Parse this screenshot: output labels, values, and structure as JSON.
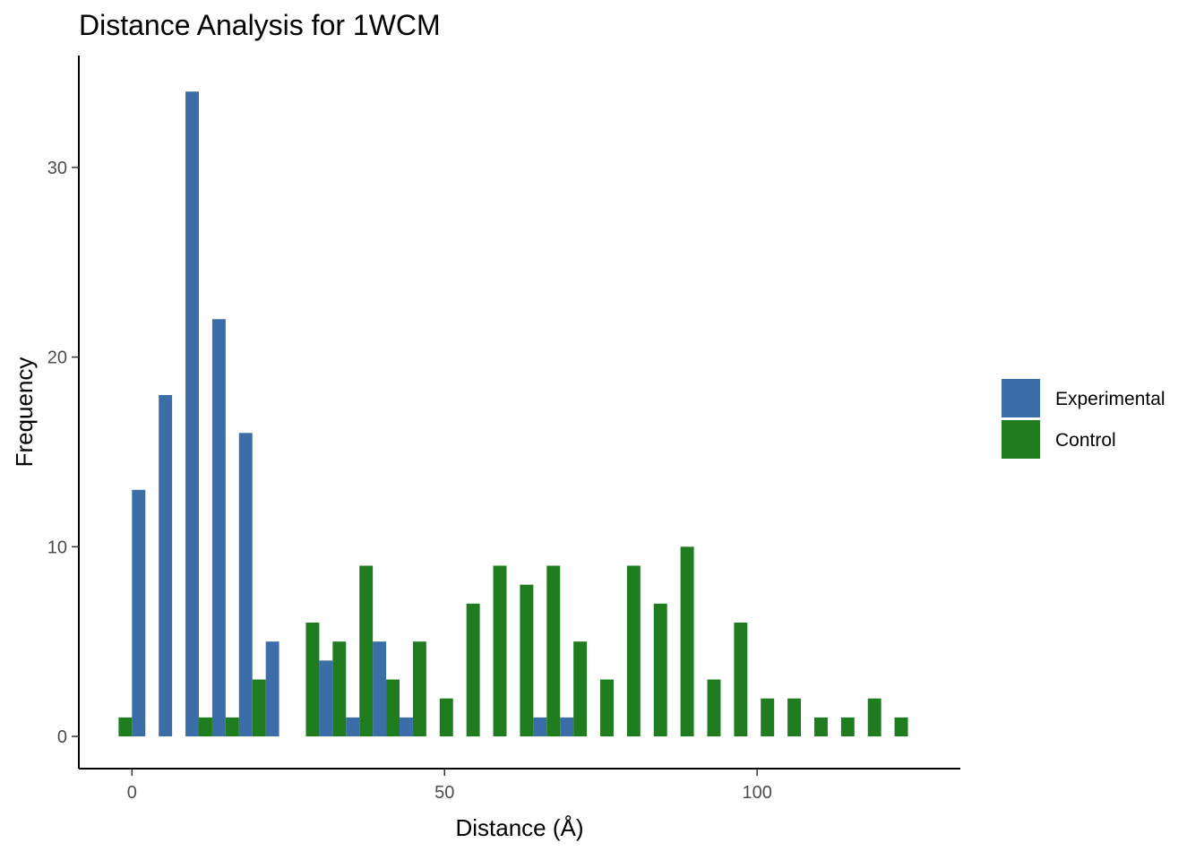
{
  "chart_data": {
    "type": "bar",
    "title": "Distance Analysis for 1WCM",
    "xlabel": "Distance (Å)",
    "ylabel": "Frequency",
    "xlim": [
      -8.5,
      132.5
    ],
    "ylim": [
      -1.7,
      35.9
    ],
    "x_ticks": [
      0,
      50,
      100
    ],
    "y_ticks": [
      0,
      10,
      20,
      30
    ],
    "bin_width": 4.28,
    "grid": false,
    "legend_position": "right",
    "x": [
      0,
      4.28,
      8.56,
      12.84,
      17.12,
      21.4,
      25.68,
      29.96,
      34.24,
      38.52,
      42.8,
      47.08,
      51.36,
      55.64,
      59.92,
      64.2,
      68.48,
      72.76,
      77.04,
      81.32,
      85.6,
      89.88,
      94.16,
      98.44,
      102.72,
      107,
      111.28,
      115.56,
      119.84,
      124.12
    ],
    "series": [
      {
        "name": "Experimental",
        "color": "#3b6ea8",
        "values": [
          13,
          18,
          34,
          22,
          16,
          5,
          0,
          4,
          1,
          5,
          1,
          0,
          0,
          0,
          0,
          1,
          1,
          0,
          0,
          0,
          0,
          0,
          0,
          0,
          0,
          0,
          0,
          0,
          0,
          0
        ]
      },
      {
        "name": "Control",
        "color": "#1f7d1f",
        "values": [
          1,
          0,
          0,
          1,
          1,
          3,
          0,
          6,
          5,
          9,
          3,
          5,
          2,
          7,
          9,
          8,
          9,
          5,
          3,
          9,
          7,
          10,
          3,
          6,
          2,
          2,
          1,
          1,
          2,
          1
        ]
      }
    ]
  }
}
